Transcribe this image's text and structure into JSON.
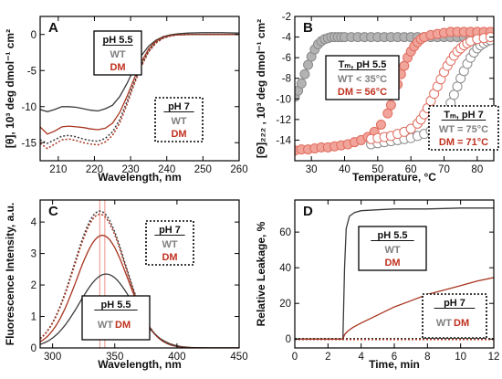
{
  "colors": {
    "wt": "#3a3a3a",
    "dm": "#a8341f",
    "dm_fill": "#f1a49a",
    "wt_grey": "#808080",
    "dm_red": "#c0311f"
  },
  "chart_data": [
    {
      "panel": "A",
      "type": "line",
      "xlabel": "Wavelength, nm",
      "ylabel": "[θ], 10³ deg dmol⁻¹ cm²",
      "xlim": [
        205,
        260
      ],
      "ylim": [
        -17.5,
        2.5
      ],
      "xticks": [
        210,
        220,
        230,
        240,
        250,
        260
      ],
      "yticks": [
        0,
        -5,
        -10,
        -15
      ],
      "legends": [
        {
          "title": "pH 5.5",
          "wt": "WT",
          "dm": "DM"
        },
        {
          "title": "pH 7",
          "wt": "WT",
          "dm": "DM"
        }
      ],
      "series": [
        {
          "key": "wt55",
          "style": "solid-dark",
          "x": [
            205,
            207,
            209,
            211,
            213,
            215,
            217,
            219,
            221,
            223,
            225,
            227,
            229,
            231,
            233,
            235,
            237,
            239,
            241,
            243,
            246,
            250,
            255,
            260
          ],
          "y": [
            -10.4,
            -10.7,
            -10.4,
            -10.0,
            -10.0,
            -10.1,
            -10.3,
            -10.5,
            -10.6,
            -10.3,
            -9.8,
            -8.6,
            -6.8,
            -4.7,
            -2.9,
            -1.6,
            -0.8,
            -0.3,
            -0.05,
            0.1,
            0.2,
            0.25,
            0.25,
            0.2
          ]
        },
        {
          "key": "dm55",
          "style": "solid-red",
          "x": [
            205,
            207,
            209,
            211,
            213,
            215,
            217,
            219,
            221,
            223,
            225,
            227,
            229,
            231,
            233,
            235,
            237,
            239,
            241,
            243,
            246,
            250,
            255,
            260
          ],
          "y": [
            -12.8,
            -13.8,
            -13.4,
            -12.8,
            -12.7,
            -12.8,
            -12.9,
            -13.1,
            -13.2,
            -13.0,
            -12.3,
            -10.8,
            -8.6,
            -6.1,
            -3.8,
            -2.0,
            -0.9,
            -0.4,
            -0.15,
            -0.05,
            0,
            0,
            0,
            0
          ]
        },
        {
          "key": "wt7",
          "style": "dotted-dark",
          "x": [
            205,
            207,
            209,
            211,
            213,
            215,
            217,
            219,
            221,
            223,
            225,
            227,
            229,
            231,
            233,
            235,
            237,
            239,
            241,
            243,
            246,
            250,
            255,
            260
          ],
          "y": [
            -14.6,
            -15.1,
            -14.6,
            -14.1,
            -14.0,
            -14.2,
            -14.5,
            -14.7,
            -14.8,
            -14.4,
            -13.5,
            -11.8,
            -9.3,
            -6.6,
            -4.2,
            -2.3,
            -1.1,
            -0.5,
            -0.2,
            -0.05,
            0,
            0,
            0,
            0
          ]
        },
        {
          "key": "dm7",
          "style": "dotted-red",
          "x": [
            205,
            207,
            209,
            211,
            213,
            215,
            217,
            219,
            221,
            223,
            225,
            227,
            229,
            231,
            233,
            235,
            237,
            239,
            241,
            243,
            246,
            250,
            255,
            260
          ],
          "y": [
            -15.1,
            -15.8,
            -15.2,
            -14.6,
            -14.5,
            -14.7,
            -15.0,
            -15.2,
            -15.3,
            -14.9,
            -14.0,
            -12.3,
            -9.7,
            -6.9,
            -4.4,
            -2.4,
            -1.2,
            -0.5,
            -0.2,
            -0.05,
            0,
            0,
            0,
            0
          ]
        }
      ]
    },
    {
      "panel": "B",
      "type": "scatter",
      "xlabel": "Temperature, °C",
      "ylabel": "[Θ]₂₂₂ , 10³ deg dmol⁻¹ cm²",
      "xlim": [
        25,
        85
      ],
      "ylim": [
        -16,
        -2
      ],
      "xticks": [
        30,
        40,
        50,
        60,
        70,
        80
      ],
      "yticks": [
        -2,
        -4,
        -6,
        -8,
        -10,
        -12,
        -14
      ],
      "legends": [
        {
          "title": "Tₘ, pH 5.5",
          "wt": "WT < 35°C",
          "dm": "DM = 56°C"
        },
        {
          "title": "Tₘ, pH 7",
          "wt": "WT = 75°C",
          "dm": "DM = 71°C"
        }
      ],
      "series": [
        {
          "key": "wt55",
          "marker": "filled-grey",
          "x": [
            25,
            26,
            27,
            28,
            29,
            30,
            31,
            32,
            33,
            34,
            35,
            36,
            37,
            38,
            39,
            40,
            42,
            44,
            46,
            48,
            50,
            52,
            54,
            56,
            58,
            60,
            62,
            64,
            66,
            68,
            70,
            72,
            74,
            76,
            78,
            80,
            82,
            84
          ],
          "y": [
            -9.8,
            -9.2,
            -8.5,
            -7.6,
            -6.7,
            -5.9,
            -5.2,
            -4.7,
            -4.4,
            -4.2,
            -4.1,
            -4.0,
            -4.0,
            -4.0,
            -4.0,
            -4.0,
            -4.0,
            -4.0,
            -4.0,
            -4.0,
            -4.0,
            -4.0,
            -4.0,
            -4.0,
            -4.0,
            -4.0,
            -4.0,
            -4.0,
            -4.0,
            -4.0,
            -4.0,
            -4.0,
            -4.0,
            -4.0,
            -4.0,
            -4.0,
            -4.0,
            -4.0
          ]
        },
        {
          "key": "dm55",
          "marker": "filled-pink",
          "x": [
            25,
            27,
            29,
            31,
            33,
            35,
            37,
            39,
            41,
            43,
            45,
            47,
            49,
            51,
            53,
            54,
            55,
            56,
            57,
            58,
            59,
            60,
            61,
            62,
            63,
            64,
            66,
            68,
            70,
            72,
            74,
            76,
            78,
            80,
            82,
            84
          ],
          "y": [
            -15.0,
            -14.9,
            -14.9,
            -14.8,
            -14.7,
            -14.7,
            -14.6,
            -14.5,
            -14.4,
            -14.2,
            -14.0,
            -13.7,
            -13.2,
            -12.5,
            -11.4,
            -10.6,
            -9.6,
            -8.6,
            -7.6,
            -6.8,
            -6.0,
            -5.4,
            -4.9,
            -4.5,
            -4.2,
            -4.0,
            -3.8,
            -3.7,
            -3.6,
            -3.5,
            -3.5,
            -3.5,
            -3.5,
            -3.5,
            -3.5,
            -3.5
          ]
        },
        {
          "key": "wt7",
          "marker": "open-grey",
          "x": [
            48,
            50,
            52,
            54,
            56,
            58,
            60,
            62,
            64,
            66,
            68,
            70,
            71,
            72,
            73,
            74,
            75,
            76,
            77,
            78,
            79,
            80,
            81,
            82,
            83,
            84
          ],
          "y": [
            -14.4,
            -14.3,
            -14.2,
            -14.1,
            -14.0,
            -13.9,
            -13.8,
            -13.6,
            -13.4,
            -13.1,
            -12.6,
            -11.8,
            -11.2,
            -10.4,
            -9.6,
            -8.8,
            -8.0,
            -7.3,
            -6.6,
            -6.0,
            -5.5,
            -5.1,
            -4.8,
            -4.6,
            -4.4,
            -4.3
          ]
        },
        {
          "key": "dm7",
          "marker": "open-pink",
          "x": [
            48,
            50,
            52,
            54,
            56,
            58,
            60,
            62,
            63,
            64,
            65,
            66,
            67,
            68,
            69,
            70,
            71,
            72,
            73,
            74,
            75,
            76,
            77,
            78,
            80,
            82,
            84
          ],
          "y": [
            -13.9,
            -13.8,
            -13.7,
            -13.6,
            -13.4,
            -13.2,
            -12.9,
            -12.4,
            -12.0,
            -11.5,
            -10.9,
            -10.2,
            -9.5,
            -8.8,
            -8.1,
            -7.4,
            -6.8,
            -6.3,
            -5.8,
            -5.4,
            -5.1,
            -4.8,
            -4.6,
            -4.4,
            -4.2,
            -4.1,
            -4.0
          ]
        }
      ]
    },
    {
      "panel": "C",
      "type": "line",
      "xlabel": "Wavelength, nm",
      "ylabel": "Fluorescence Intensity, a.u.",
      "xlim": [
        290,
        450
      ],
      "ylim": [
        0,
        4.7
      ],
      "xticks": [
        300,
        350,
        400,
        450
      ],
      "yticks": [
        0,
        1,
        2,
        3,
        4
      ],
      "vlines": [
        338,
        342
      ],
      "legends": [
        {
          "title": "pH 7",
          "wt": "WT",
          "dm": "DM"
        },
        {
          "title": "pH 5.5",
          "wt": "WT",
          "dm": "DM"
        }
      ],
      "series": [
        {
          "key": "wt55",
          "style": "solid-dark",
          "peak": 2.35,
          "center": 343,
          "width": 28
        },
        {
          "key": "dm55",
          "style": "solid-red",
          "peak": 3.58,
          "center": 340,
          "width": 27
        },
        {
          "key": "wt7",
          "style": "dotted-dark",
          "peak": 4.35,
          "center": 338,
          "width": 27
        },
        {
          "key": "dm7",
          "style": "dotted-red",
          "peak": 4.25,
          "center": 338,
          "width": 27
        }
      ]
    },
    {
      "panel": "D",
      "type": "line",
      "xlabel": "Time, min",
      "ylabel": "Relative Leakage, %",
      "xlim": [
        0,
        12
      ],
      "ylim": [
        -5,
        78
      ],
      "xticks": [
        0,
        2,
        4,
        6,
        8,
        10,
        12
      ],
      "yticks": [
        0,
        20,
        40,
        60
      ],
      "legends": [
        {
          "title": "pH 5.5",
          "wt": "WT",
          "dm": "DM"
        },
        {
          "title": "pH 7",
          "wt": "WT",
          "dm": "DM"
        }
      ],
      "series": [
        {
          "key": "wt55",
          "style": "solid-dark",
          "x": [
            0,
            1,
            2,
            2.9,
            3.0,
            3.1,
            3.3,
            3.6,
            4.0,
            5,
            6,
            8,
            10,
            12
          ],
          "y": [
            0,
            0,
            0,
            0,
            40,
            62,
            69,
            71,
            72,
            72.5,
            73,
            73,
            73.5,
            73.5
          ]
        },
        {
          "key": "dm55",
          "style": "solid-red",
          "x": [
            0,
            1,
            2,
            2.9,
            3.0,
            3.2,
            3.5,
            4,
            5,
            6,
            7,
            8,
            9,
            10,
            11,
            12
          ],
          "y": [
            0,
            0,
            0,
            0,
            2.5,
            4.5,
            6.5,
            9,
            13.5,
            18,
            21.5,
            25,
            27.5,
            30,
            32.5,
            34.5
          ]
        },
        {
          "key": "wt7",
          "style": "dotted-dark",
          "x": [
            0,
            12
          ],
          "y": [
            0.3,
            0.3
          ]
        },
        {
          "key": "dm7",
          "style": "dotted-red",
          "x": [
            0,
            12
          ],
          "y": [
            -0.3,
            -0.3
          ]
        }
      ]
    }
  ]
}
